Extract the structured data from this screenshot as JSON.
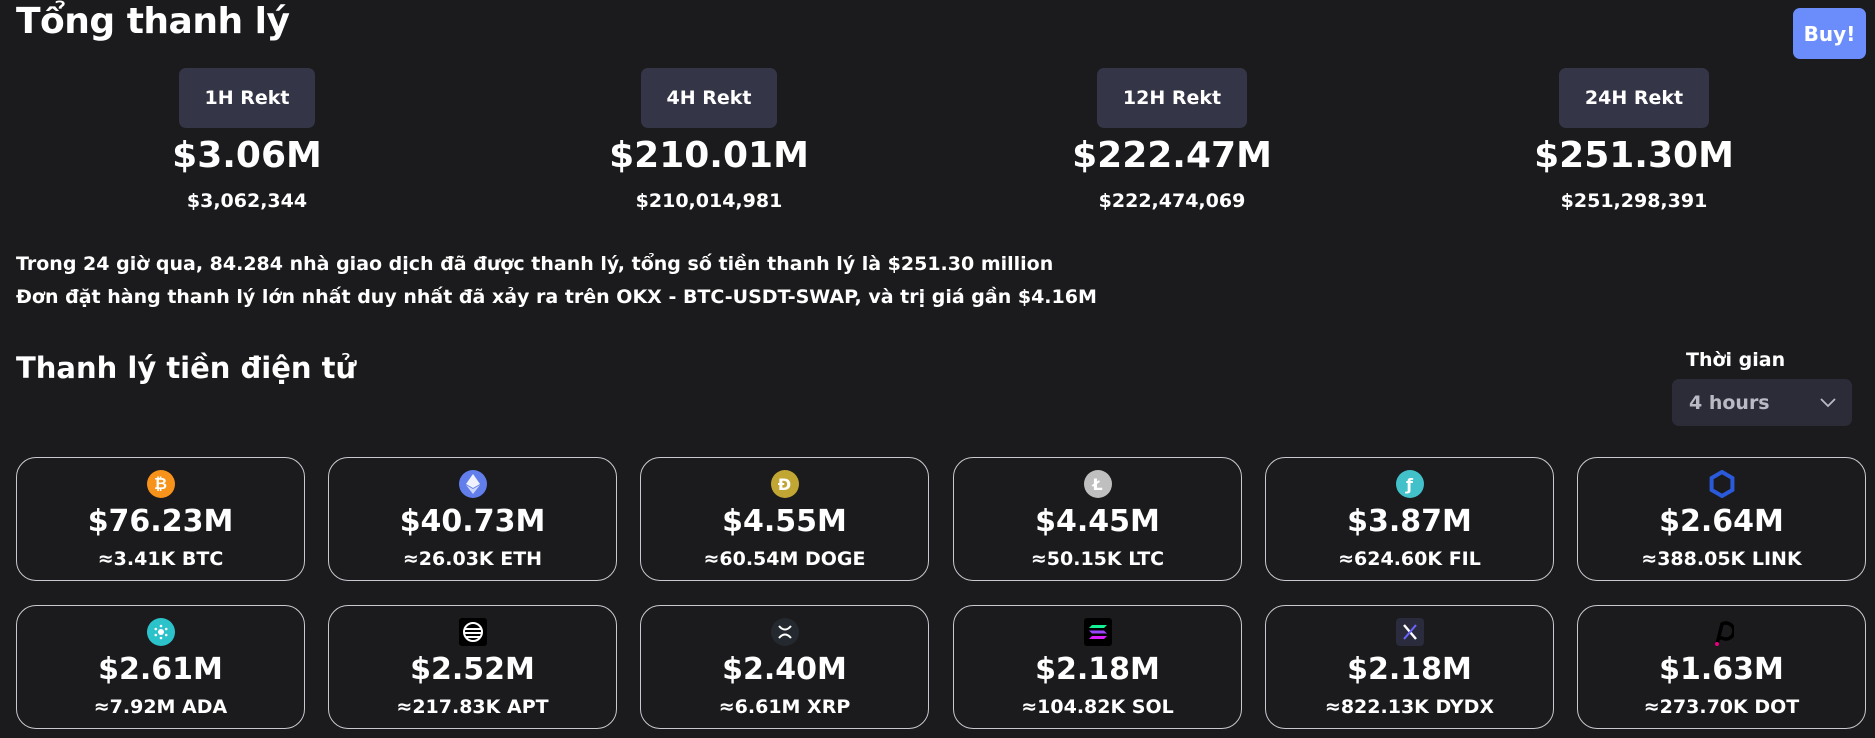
{
  "header": {
    "title": "Tổng thanh lý",
    "buy_label": "Buy!"
  },
  "rekt": [
    {
      "label": "1H Rekt",
      "value": "$3.06M",
      "exact": "$3,062,344"
    },
    {
      "label": "4H Rekt",
      "value": "$210.01M",
      "exact": "$210,014,981"
    },
    {
      "label": "12H Rekt",
      "value": "$222.47M",
      "exact": "$222,474,069"
    },
    {
      "label": "24H Rekt",
      "value": "$251.30M",
      "exact": "$251,298,391"
    }
  ],
  "summary": {
    "line1": "Trong 24 giờ qua, 84.284 nhà giao dịch đã được thanh lý, tổng số tiền thanh lý là $251.30 million",
    "line2": "Đơn đặt hàng thanh lý lớn nhất duy nhất đã xảy ra trên OKX - BTC-USDT-SWAP, và trị giá gần $4.16M"
  },
  "crypto_section": {
    "title": "Thanh lý tiền điện tử",
    "time_label": "Thời gian",
    "time_value": "4 hours"
  },
  "coins": [
    {
      "icon": "bitcoin-icon",
      "color": "#f7931a",
      "value": "$76.23M",
      "amount": "≈3.41K BTC"
    },
    {
      "icon": "ethereum-icon",
      "color": "#627eea",
      "value": "$40.73M",
      "amount": "≈26.03K ETH"
    },
    {
      "icon": "dogecoin-icon",
      "color": "#c2a633",
      "value": "$4.55M",
      "amount": "≈60.54M DOGE"
    },
    {
      "icon": "litecoin-icon",
      "color": "#a8a8a8",
      "value": "$4.45M",
      "amount": "≈50.15K LTC"
    },
    {
      "icon": "filecoin-icon",
      "color": "#0090ff",
      "value": "$3.87M",
      "amount": "≈624.60K FIL"
    },
    {
      "icon": "chainlink-icon",
      "color": "#2a5ada",
      "value": "$2.64M",
      "amount": "≈388.05K LINK"
    },
    {
      "icon": "cardano-icon",
      "color": "#2bc2c9",
      "value": "$2.61M",
      "amount": "≈7.92M ADA"
    },
    {
      "icon": "aptos-icon",
      "color": "#000000",
      "value": "$2.52M",
      "amount": "≈217.83K APT"
    },
    {
      "icon": "xrp-icon",
      "color": "#23292f",
      "value": "$2.40M",
      "amount": "≈6.61M XRP"
    },
    {
      "icon": "solana-icon",
      "color": "#000000",
      "value": "$2.18M",
      "amount": "≈104.82K SOL"
    },
    {
      "icon": "dydx-icon",
      "color": "#2b2b3e",
      "value": "$2.18M",
      "amount": "≈822.13K DYDX"
    },
    {
      "icon": "polkadot-icon",
      "color": "#e6007a",
      "value": "$1.63M",
      "amount": "≈273.70K DOT"
    }
  ]
}
